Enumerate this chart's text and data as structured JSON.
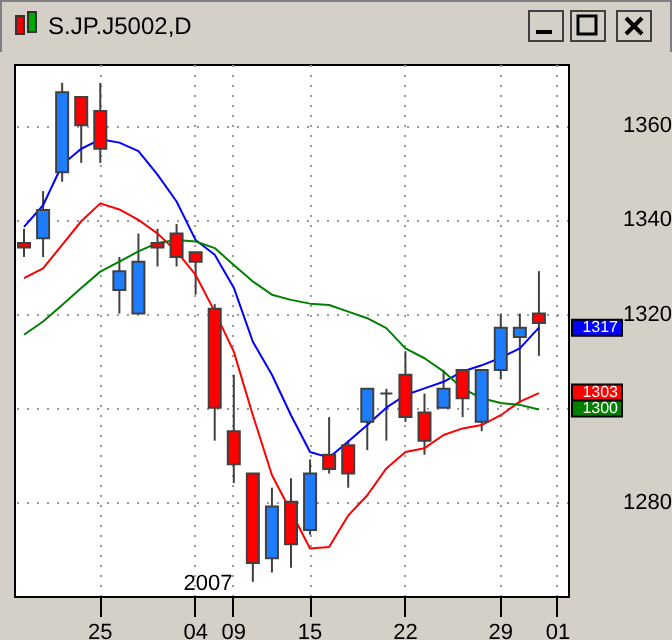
{
  "chart_data": {
    "type": "candlestick",
    "title": "S.JP.J5002,D",
    "categories": [
      null,
      null,
      null,
      null,
      "25",
      null,
      null,
      null,
      null,
      "04",
      null,
      "09",
      null,
      null,
      null,
      "15",
      null,
      null,
      null,
      null,
      "22",
      null,
      null,
      null,
      null,
      "29",
      null,
      null,
      "01"
    ],
    "ohlc": [
      [
        1335,
        1338,
        1332,
        1334
      ],
      [
        1336,
        1346,
        1332,
        1342
      ],
      [
        1350,
        1369,
        1348,
        1367
      ],
      [
        1366,
        1366,
        1352,
        1360
      ],
      [
        1363,
        1369,
        1352,
        1355
      ],
      [
        1325,
        1332,
        1320,
        1329
      ],
      [
        1320,
        1337,
        1320,
        1331
      ],
      [
        1335,
        1338,
        1330,
        1334
      ],
      [
        1337,
        1339,
        1330,
        1332
      ],
      [
        1333,
        1333,
        1324,
        1331
      ],
      [
        1321,
        1322,
        1293,
        1300
      ],
      [
        1295,
        1307,
        1284,
        1288
      ],
      [
        1286,
        1286,
        1263,
        1267
      ],
      [
        1268,
        1283,
        1265,
        1279
      ],
      [
        1280,
        1285,
        1266,
        1271
      ],
      [
        1274,
        1289,
        1273,
        1286
      ],
      [
        1290,
        1298,
        1286,
        1287
      ],
      [
        1292,
        1293,
        1283,
        1286
      ],
      [
        1297,
        1304,
        1291,
        1304
      ],
      [
        1303,
        1304,
        1293,
        1303
      ],
      [
        1307,
        1312,
        1297,
        1298
      ],
      [
        1299,
        1303,
        1290,
        1293
      ],
      [
        1300,
        1308,
        1300,
        1304
      ],
      [
        1308,
        1308,
        1298,
        1302
      ],
      [
        1297,
        1308,
        1295,
        1308
      ],
      [
        1308,
        1320,
        1306,
        1317
      ],
      [
        1315,
        1320,
        1301,
        1317
      ],
      [
        1320,
        1329,
        1311,
        1318
      ],
      null
    ],
    "colors": [
      "#ff0000",
      "#1e7cff",
      "#1e7cff",
      "#ff0000",
      "#ff0000",
      "#1e7cff",
      "#1e7cff",
      "#ff0000",
      "#ff0000",
      "#ff0000",
      "#ff0000",
      "#ff0000",
      "#ff0000",
      "#1e7cff",
      "#ff0000",
      "#1e7cff",
      "#ff0000",
      "#ff0000",
      "#1e7cff",
      "#404040",
      "#ff0000",
      "#ff0000",
      "#1e7cff",
      "#ff0000",
      "#1e7cff",
      "#1e7cff",
      "#1e7cff",
      "#ff0000",
      null
    ],
    "series": [
      {
        "type": "line",
        "color": "#0000ff",
        "values": [
          1338.4,
          1343,
          1351.6,
          1355,
          1357,
          1356.3,
          1354.5,
          1349.5,
          1343.8,
          1335.6,
          1332.5,
          1325.5,
          1314,
          1307,
          1298.4,
          1290.6,
          1289.4,
          1292.8,
          1296.3,
          1300,
          1302.7,
          1304.1,
          1305.5,
          1307.7,
          1309,
          1310.6,
          1312.6,
          1317,
          null
        ]
      },
      {
        "type": "line",
        "color": "#ff0000",
        "values": [
          1327.5,
          1329.6,
          1334.6,
          1339.6,
          1343.4,
          1342.1,
          1339.9,
          1337,
          1333.2,
          1328.2,
          1320.4,
          1311.9,
          1298.4,
          1285.7,
          1277.9,
          1270.1,
          1270.4,
          1277.1,
          1281.4,
          1287.1,
          1290.6,
          1291.4,
          1294.2,
          1295.6,
          1296.3,
          1298.4,
          1301.3,
          1303.1,
          null
        ]
      },
      {
        "type": "line",
        "color": "#008000",
        "values": [
          1315.5,
          1318.3,
          1321.8,
          1325.4,
          1328.9,
          1331,
          1333.2,
          1335,
          1335.6,
          1335.3,
          1333.9,
          1330.3,
          1326.8,
          1324,
          1322.9,
          1322.1,
          1321.8,
          1320.4,
          1319,
          1316.9,
          1312.6,
          1310.5,
          1307.7,
          1304.1,
          1302,
          1301,
          1300.6,
          1299.6,
          null
        ]
      }
    ],
    "ylim": [
      1260,
      1373
    ],
    "yticks": [
      1280,
      {
        "value": 1300,
        "label": null
      },
      1320,
      1340,
      1360
    ],
    "grid": true,
    "annotations": [
      "2007",
      {
        "text": "1317",
        "y": 1317
      },
      {
        "text": "1303",
        "y": 1303
      },
      {
        "text": "1300",
        "y": 1300
      }
    ]
  }
}
